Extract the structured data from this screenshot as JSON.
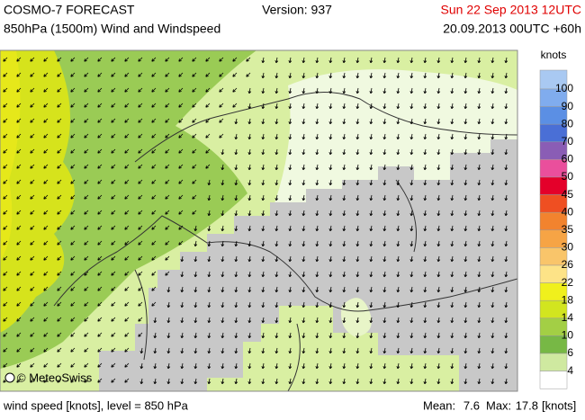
{
  "header": {
    "title": "COSMO-7 FORECAST",
    "subtitle": "850hPa (1500m) Wind and Windspeed",
    "version": "Version: 937",
    "valid_time": "Sun 22 Sep 2013 12UTC",
    "run_time": "20.09.2013 00UTC +60h"
  },
  "map": {
    "credit": "© MeteoSwiss"
  },
  "legend": {
    "unit": "knots",
    "levels": [
      100,
      90,
      80,
      70,
      60,
      50,
      45,
      40,
      35,
      30,
      26,
      22,
      18,
      14,
      10,
      6,
      4
    ],
    "colors": [
      "#a9c9f2",
      "#80acee",
      "#5b8fe4",
      "#4a6fd6",
      "#8a5db5",
      "#ea4f9c",
      "#e4002a",
      "#ef4f22",
      "#f2832e",
      "#f6a445",
      "#f9c56a",
      "#fde387",
      "#f0f01c",
      "#d2e51f",
      "#a3cf45",
      "#77b845",
      "#cfe9a0",
      "#ffffff"
    ]
  },
  "footer": {
    "description": "wind speed [knots], level = 850 hPa",
    "mean_label": "Mean:",
    "mean": 7.6,
    "max_label": "Max:",
    "max": 17.8,
    "unit": "[knots]"
  }
}
